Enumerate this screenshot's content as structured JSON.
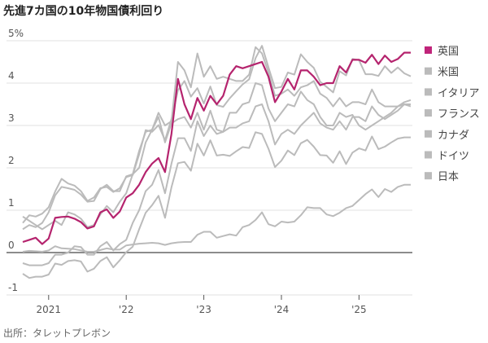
{
  "chart_data": {
    "type": "line",
    "title": "先進7カ国の10年物国債利回り",
    "source": "出所：タレットプレボン",
    "xlabel": "",
    "ylabel": "",
    "x_start": "2020-09",
    "x_end": "2025-09",
    "frequency": "monthly",
    "ylim": [
      -1,
      5
    ],
    "yticks": [
      {
        "value": 5,
        "label": "5%"
      },
      {
        "value": 4,
        "label": "4"
      },
      {
        "value": 3,
        "label": "3"
      },
      {
        "value": 2,
        "label": "2"
      },
      {
        "value": 1,
        "label": "1"
      },
      {
        "value": 0,
        "label": "0"
      },
      {
        "value": -1,
        "label": "-1"
      }
    ],
    "xticks": [
      {
        "index": 4,
        "label": "2021"
      },
      {
        "index": 16,
        "label": "'22"
      },
      {
        "index": 28,
        "label": "'23"
      },
      {
        "index": 40,
        "label": "'24"
      },
      {
        "index": 52,
        "label": "'25"
      }
    ],
    "grid": true,
    "legend_position": "right",
    "series": [
      {
        "name": "英国",
        "color": "#b5246e",
        "highlight": true,
        "values": [
          0.25,
          0.3,
          0.35,
          0.2,
          0.33,
          0.82,
          0.84,
          0.85,
          0.8,
          0.72,
          0.57,
          0.62,
          0.95,
          1.02,
          0.82,
          0.97,
          1.3,
          1.4,
          1.6,
          1.9,
          2.1,
          2.23,
          1.9,
          2.8,
          4.1,
          3.5,
          3.15,
          3.65,
          3.35,
          3.7,
          3.5,
          3.7,
          4.2,
          4.4,
          4.35,
          4.4,
          4.45,
          4.5,
          4.15,
          3.55,
          3.8,
          4.1,
          3.85,
          4.3,
          4.3,
          4.15,
          3.95,
          4.0,
          4.0,
          4.4,
          4.25,
          4.55,
          4.55,
          4.48,
          4.67,
          4.45,
          4.65,
          4.5,
          4.57,
          4.72,
          4.72
        ]
      },
      {
        "name": "米国",
        "color": "#bbbbbb",
        "values": [
          0.7,
          0.88,
          0.85,
          0.92,
          1.07,
          1.44,
          1.74,
          1.63,
          1.58,
          1.45,
          1.22,
          1.3,
          1.52,
          1.55,
          1.43,
          1.52,
          1.78,
          1.83,
          2.32,
          2.89,
          2.85,
          3.01,
          2.65,
          3.15,
          3.83,
          4.05,
          3.68,
          3.88,
          3.52,
          3.92,
          3.48,
          3.44,
          3.64,
          3.81,
          3.97,
          4.09,
          4.59,
          4.88,
          4.37,
          3.88,
          3.91,
          4.25,
          4.2,
          4.68,
          4.5,
          4.36,
          4.03,
          3.91,
          3.78,
          4.28,
          4.18,
          4.57,
          4.54,
          4.21,
          4.21,
          4.17,
          4.4,
          4.24,
          4.37,
          4.23,
          4.16
        ]
      },
      {
        "name": "イタリア",
        "color": "#bbbbbb",
        "values": [
          0.85,
          0.75,
          0.65,
          0.55,
          0.65,
          0.75,
          0.65,
          0.95,
          0.9,
          0.8,
          0.6,
          0.65,
          0.9,
          1.1,
          0.95,
          1.2,
          1.4,
          1.85,
          2.0,
          2.6,
          2.9,
          3.3,
          3.0,
          3.1,
          4.5,
          4.3,
          3.9,
          4.7,
          4.15,
          4.4,
          4.1,
          4.15,
          4.1,
          4.05,
          4.05,
          4.2,
          4.85,
          4.7,
          4.25,
          3.7,
          3.75,
          3.85,
          3.7,
          3.9,
          3.95,
          4.05,
          3.75,
          3.65,
          3.45,
          3.65,
          3.45,
          3.55,
          3.55,
          3.5,
          3.85,
          3.55,
          3.45,
          3.45,
          3.45,
          3.55,
          3.6
        ]
      },
      {
        "name": "フランス",
        "color": "#bbbbbb",
        "values": [
          -0.25,
          -0.3,
          -0.3,
          -0.3,
          -0.25,
          -0.05,
          -0.05,
          0.0,
          0.15,
          0.13,
          -0.05,
          -0.05,
          0.15,
          0.25,
          0.05,
          0.2,
          0.3,
          0.7,
          1.0,
          1.45,
          1.6,
          1.95,
          1.4,
          2.1,
          2.7,
          2.7,
          2.4,
          3.1,
          2.75,
          3.0,
          2.8,
          2.85,
          2.95,
          2.95,
          3.05,
          3.1,
          3.45,
          3.5,
          3.1,
          2.55,
          2.8,
          2.9,
          2.8,
          3.0,
          3.15,
          3.3,
          3.05,
          2.95,
          2.9,
          3.1,
          2.9,
          3.2,
          3.2,
          3.1,
          3.45,
          3.25,
          3.15,
          3.25,
          3.35,
          3.5,
          3.45
        ]
      },
      {
        "name": "カナダ",
        "color": "#bbbbbb",
        "values": [
          0.55,
          0.65,
          0.6,
          0.7,
          0.95,
          1.35,
          1.55,
          1.52,
          1.48,
          1.37,
          1.2,
          1.22,
          1.5,
          1.6,
          1.45,
          1.45,
          1.8,
          1.85,
          2.4,
          2.85,
          2.9,
          3.2,
          2.6,
          3.05,
          3.15,
          3.2,
          2.95,
          3.3,
          2.9,
          3.35,
          2.9,
          2.85,
          3.3,
          3.3,
          3.5,
          3.55,
          4.0,
          3.95,
          3.4,
          3.1,
          3.3,
          3.5,
          3.45,
          3.8,
          3.6,
          3.5,
          3.2,
          3.0,
          3.0,
          3.3,
          3.2,
          3.25,
          3.0,
          2.9,
          3.0,
          3.1,
          3.2,
          3.3,
          3.45,
          3.5,
          3.5
        ]
      },
      {
        "name": "ドイツ",
        "color": "#bbbbbb",
        "values": [
          -0.5,
          -0.6,
          -0.57,
          -0.57,
          -0.52,
          -0.26,
          -0.29,
          -0.2,
          -0.18,
          -0.21,
          -0.45,
          -0.38,
          -0.2,
          -0.11,
          -0.35,
          -0.18,
          0.01,
          0.14,
          0.55,
          0.94,
          1.12,
          1.34,
          0.82,
          1.54,
          2.11,
          2.14,
          1.93,
          2.57,
          2.29,
          2.65,
          2.29,
          2.31,
          2.28,
          2.39,
          2.49,
          2.47,
          2.84,
          2.8,
          2.45,
          2.02,
          2.17,
          2.41,
          2.3,
          2.58,
          2.66,
          2.5,
          2.3,
          2.29,
          2.12,
          2.39,
          2.09,
          2.36,
          2.46,
          2.41,
          2.74,
          2.44,
          2.5,
          2.6,
          2.69,
          2.72,
          2.72
        ]
      },
      {
        "name": "日本",
        "color": "#bbbbbb",
        "values": [
          0.02,
          0.04,
          0.03,
          0.02,
          0.05,
          0.15,
          0.1,
          0.09,
          0.08,
          0.05,
          0.02,
          0.02,
          0.06,
          0.1,
          0.07,
          0.07,
          0.17,
          0.19,
          0.21,
          0.22,
          0.23,
          0.22,
          0.18,
          0.22,
          0.24,
          0.25,
          0.25,
          0.42,
          0.49,
          0.49,
          0.35,
          0.39,
          0.43,
          0.4,
          0.6,
          0.65,
          0.77,
          0.95,
          0.67,
          0.62,
          0.73,
          0.71,
          0.73,
          0.88,
          1.07,
          1.05,
          1.05,
          0.9,
          0.86,
          0.94,
          1.05,
          1.1,
          1.24,
          1.38,
          1.49,
          1.31,
          1.5,
          1.43,
          1.55,
          1.6,
          1.6
        ]
      }
    ]
  }
}
